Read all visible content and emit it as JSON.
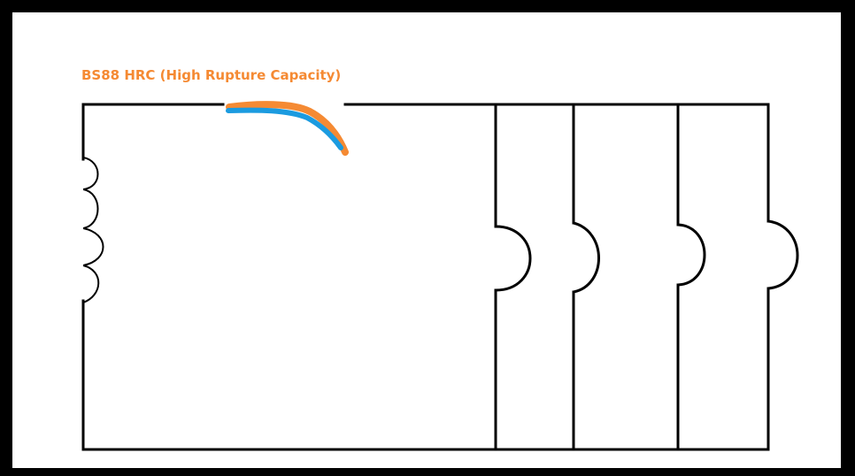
{
  "fuse": {
    "label": "BS88 HRC (High Rupture Capacity)",
    "label_color": "#f58a33",
    "blade_color_outer": "#f58a33",
    "blade_color_inner": "#1b9be0"
  },
  "wire_color": "#000000",
  "background": "#ffffff",
  "frame_color": "#000000",
  "components": {
    "inductor_turns": 4,
    "lamp_count": 4
  }
}
